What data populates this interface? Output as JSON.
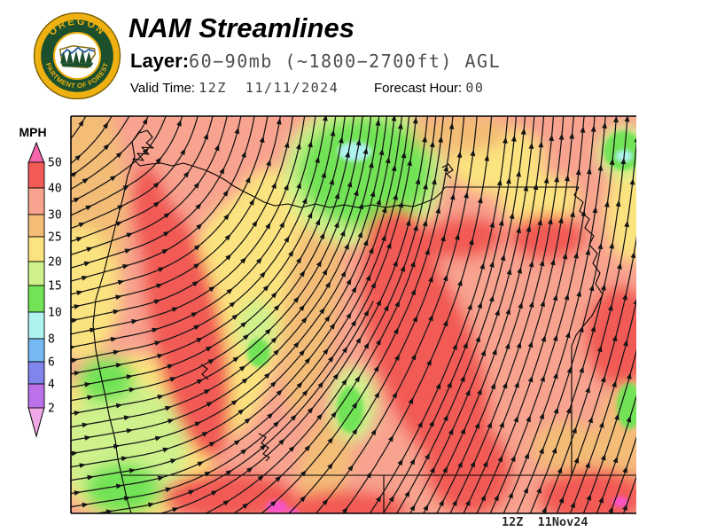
{
  "header": {
    "title": "NAM Streamlines",
    "layer_label": "Layer:",
    "layer_value": "60−90mb (~1800−2700ft) AGL",
    "valid_time_label": "Valid Time:",
    "valid_time_value": "12Z  11/11/2024",
    "forecast_hour_label": "Forecast Hour:",
    "forecast_hour_value": "00",
    "logo": {
      "text_top": "OREGON",
      "text_bottom": "DEPARTMENT OF FORESTRY",
      "colors": {
        "gold": "#eeb111",
        "dark_green": "#1c4f2c",
        "white": "#ffffff",
        "blue": "#2a5fa5"
      }
    }
  },
  "legend": {
    "units_label": "MPH",
    "tick_labels": [
      "50",
      "40",
      "30",
      "25",
      "20",
      "15",
      "10",
      "8",
      "6",
      "4",
      "2"
    ],
    "band_colors": [
      "#f25a55",
      "#f8a38f",
      "#f3bc77",
      "#fbe37f",
      "#cef18c",
      "#72e356",
      "#aef3ee",
      "#76b9f2",
      "#8084ed",
      "#bc70e9"
    ],
    "arrow_top_color": "#f666ac",
    "arrow_bottom_color": "#f0a9e6",
    "over_max_color": "#fa52c8"
  },
  "map": {
    "timestamp": "12Z  11Nov24",
    "base_band": 1,
    "wind_regions": [
      [
        2,
        96,
        235,
        46,
        135,
        0
      ],
      [
        3,
        90,
        330,
        45,
        75,
        0
      ],
      [
        3,
        150,
        495,
        95,
        95,
        0
      ],
      [
        4,
        140,
        505,
        70,
        75,
        0
      ],
      [
        5,
        120,
        428,
        32,
        26,
        0
      ],
      [
        5,
        138,
        552,
        42,
        30,
        0
      ],
      [
        3,
        260,
        360,
        60,
        140,
        8
      ],
      [
        3,
        310,
        270,
        55,
        80,
        0
      ],
      [
        2,
        352,
        345,
        30,
        125,
        8
      ],
      [
        2,
        368,
        520,
        28,
        55,
        15
      ],
      [
        4,
        290,
        370,
        22,
        32,
        0
      ],
      [
        5,
        292,
        398,
        13,
        16,
        0
      ],
      [
        4,
        398,
        455,
        26,
        42,
        0
      ],
      [
        5,
        395,
        462,
        15,
        26,
        0
      ],
      [
        4,
        410,
        196,
        90,
        82,
        0
      ],
      [
        5,
        412,
        194,
        75,
        62,
        0
      ],
      [
        6,
        400,
        171,
        19,
        11,
        0
      ],
      [
        3,
        560,
        180,
        55,
        38,
        0
      ],
      [
        3,
        608,
        225,
        45,
        28,
        0
      ],
      [
        2,
        520,
        150,
        55,
        22,
        0
      ],
      [
        3,
        712,
        240,
        28,
        55,
        0
      ],
      [
        4,
        705,
        172,
        30,
        30,
        0
      ],
      [
        5,
        703,
        170,
        22,
        22,
        0
      ],
      [
        6,
        704,
        176,
        9,
        6,
        0
      ],
      [
        4,
        708,
        462,
        20,
        36,
        0
      ],
      [
        5,
        710,
        458,
        14,
        26,
        0
      ],
      [
        2,
        700,
        500,
        26,
        60,
        0
      ],
      [
        2,
        640,
        505,
        40,
        30,
        0
      ],
      [
        0,
        172,
        248,
        22,
        62,
        -8
      ],
      [
        0,
        210,
        370,
        40,
        150,
        -12
      ],
      [
        0,
        258,
        560,
        75,
        28,
        0
      ],
      [
        0,
        390,
        575,
        70,
        22,
        0
      ],
      [
        0,
        480,
        400,
        58,
        145,
        -20
      ],
      [
        0,
        452,
        295,
        42,
        60,
        -12
      ],
      [
        0,
        523,
        268,
        45,
        24,
        -5
      ],
      [
        0,
        618,
        268,
        42,
        26,
        0
      ],
      [
        0,
        700,
        380,
        40,
        58,
        0
      ],
      [
        0,
        528,
        528,
        48,
        55,
        -25
      ],
      [
        0,
        668,
        560,
        62,
        32,
        0
      ],
      [
        -1,
        312,
        572,
        12,
        8,
        0
      ],
      [
        -1,
        330,
        578,
        7,
        5,
        0
      ],
      [
        -1,
        700,
        566,
        9,
        6,
        0
      ]
    ]
  }
}
